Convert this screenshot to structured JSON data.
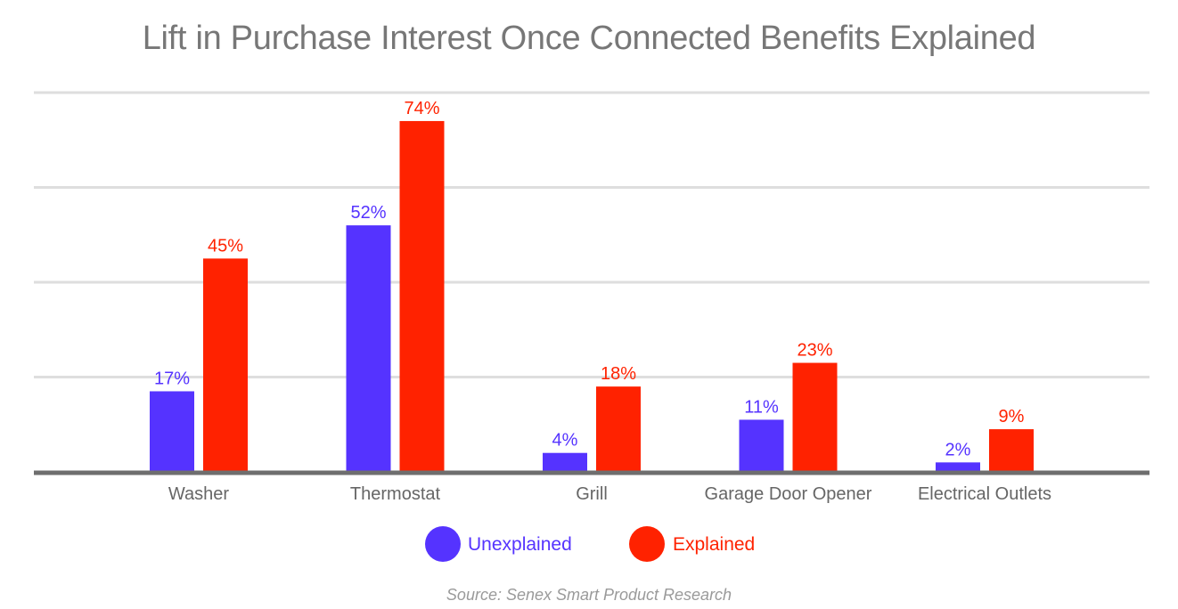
{
  "chart_data": {
    "type": "bar",
    "title": "Lift in Purchase Interest Once Connected Benefits Explained",
    "categories": [
      "Washer",
      "Thermostat",
      "Grill",
      "Garage Door Opener",
      "Electrical Outlets"
    ],
    "series": [
      {
        "name": "Unexplained",
        "values": [
          17,
          52,
          4,
          11,
          2
        ],
        "labels": [
          "17%",
          "52%",
          "4%",
          "11%",
          "2%"
        ],
        "color": "#5533ff"
      },
      {
        "name": "Explained",
        "values": [
          45,
          74,
          18,
          23,
          9
        ],
        "labels": [
          "45%",
          "74%",
          "18%",
          "23%",
          "9%"
        ],
        "color": "#ff2200"
      }
    ],
    "ylim": [
      0,
      80
    ],
    "grid": true,
    "legend_position": "bottom-center",
    "source": "Source: Senex Smart Product Research"
  }
}
